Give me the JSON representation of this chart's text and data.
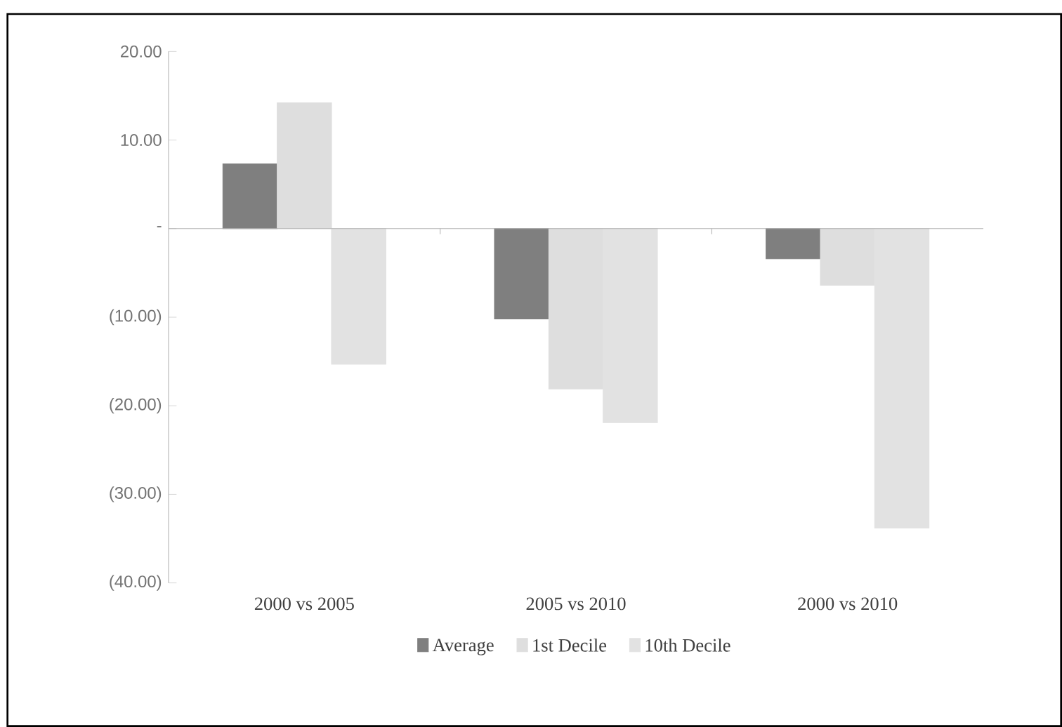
{
  "chart_data": {
    "type": "bar",
    "categories": [
      "2000 vs 2005",
      "2005 vs 2010",
      "2000 vs 2010"
    ],
    "series": [
      {
        "name": "Average",
        "color": "#7f7f7f",
        "values": [
          7.3,
          -10.2,
          -3.4
        ]
      },
      {
        "name": "1st Decile",
        "color": "#dedede",
        "values": [
          14.2,
          -18.1,
          -6.4
        ]
      },
      {
        "name": "10th Decile",
        "color": "#e2e2e2",
        "values": [
          -15.3,
          -21.9,
          -33.8
        ]
      }
    ],
    "ylim": [
      -40,
      20
    ],
    "yticks": [
      {
        "value": -40,
        "label": "(40.00)"
      },
      {
        "value": -30,
        "label": "(30.00)"
      },
      {
        "value": -20,
        "label": "(20.00)"
      },
      {
        "value": -10,
        "label": "(10.00)"
      },
      {
        "value": 0,
        "label": "-"
      },
      {
        "value": 10,
        "label": "10.00"
      },
      {
        "value": 20,
        "label": "20.00"
      }
    ],
    "legend": "bottom"
  }
}
